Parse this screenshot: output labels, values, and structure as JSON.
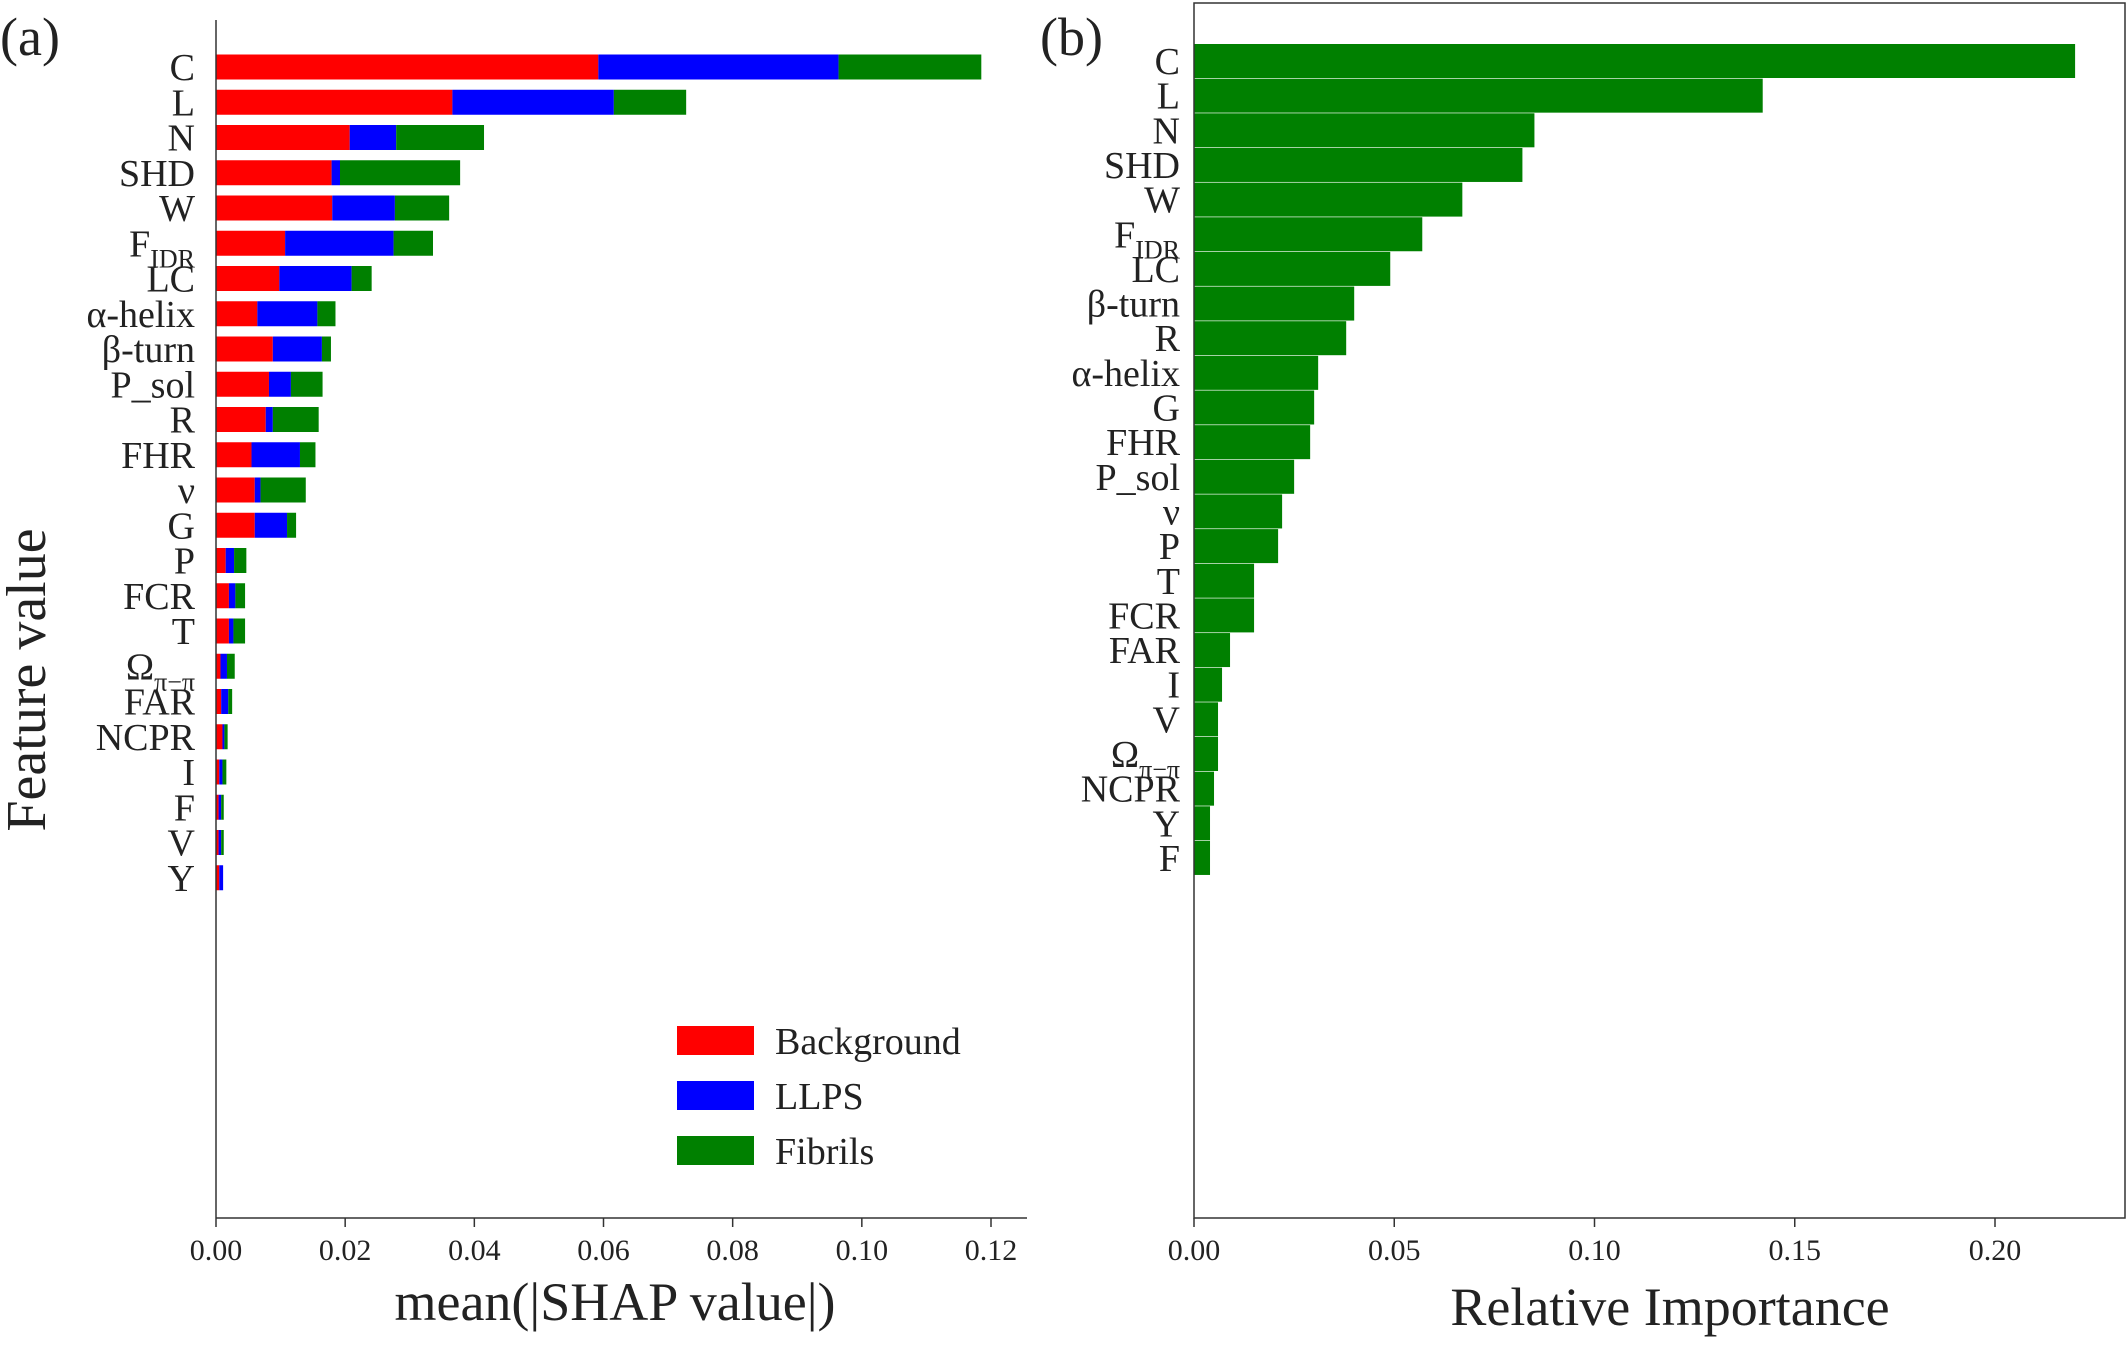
{
  "chart_data": [
    {
      "panel_label": "(a)",
      "type": "bar",
      "orientation": "horizontal",
      "stacked": true,
      "xlabel": "mean(|SHAP value|)",
      "ylabel": "Feature value",
      "xlim": [
        0.0,
        0.12
      ],
      "xticks": [
        "0.00",
        "0.02",
        "0.04",
        "0.06",
        "0.08",
        "0.10",
        "0.12"
      ],
      "grid": false,
      "legend_placement": "bottom-right",
      "categories": [
        {
          "main": "C",
          "sub": ""
        },
        {
          "main": "L",
          "sub": ""
        },
        {
          "main": "N",
          "sub": ""
        },
        {
          "main": "SHD",
          "sub": ""
        },
        {
          "main": "W",
          "sub": ""
        },
        {
          "main": "F",
          "sub": "IDR"
        },
        {
          "main": "LC",
          "sub": ""
        },
        {
          "main": "α-helix",
          "sub": ""
        },
        {
          "main": "β-turn",
          "sub": ""
        },
        {
          "main": "P_sol",
          "sub": ""
        },
        {
          "main": "R",
          "sub": ""
        },
        {
          "main": "FHR",
          "sub": ""
        },
        {
          "main": "ν",
          "sub": ""
        },
        {
          "main": "G",
          "sub": ""
        },
        {
          "main": "P",
          "sub": ""
        },
        {
          "main": "FCR",
          "sub": ""
        },
        {
          "main": "T",
          "sub": ""
        },
        {
          "main": "Ω",
          "sub": "π−π"
        },
        {
          "main": "FAR",
          "sub": ""
        },
        {
          "main": "NCPR",
          "sub": ""
        },
        {
          "main": "I",
          "sub": ""
        },
        {
          "main": "F",
          "sub": ""
        },
        {
          "main": "V",
          "sub": ""
        },
        {
          "main": "Y",
          "sub": ""
        }
      ],
      "series": [
        {
          "name": "Background",
          "color": "#ff0000",
          "values": [
            0.0592,
            0.0366,
            0.0207,
            0.0179,
            0.018,
            0.0107,
            0.0098,
            0.0064,
            0.0088,
            0.0082,
            0.0077,
            0.0055,
            0.006,
            0.006,
            0.0015,
            0.002,
            0.002,
            0.0007,
            0.0008,
            0.001,
            0.0005,
            0.0004,
            0.0004,
            0.0005
          ]
        },
        {
          "name": "LLPS",
          "color": "#0000ff",
          "values": [
            0.0372,
            0.025,
            0.0072,
            0.0013,
            0.0097,
            0.0168,
            0.0112,
            0.0093,
            0.0076,
            0.0034,
            0.0011,
            0.0075,
            0.0009,
            0.005,
            0.0013,
            0.001,
            0.0007,
            0.001,
            0.0011,
            0.0003,
            0.0005,
            0.0004,
            0.0004,
            0.0006
          ]
        },
        {
          "name": "Fibrils",
          "color": "#008000",
          "values": [
            0.0221,
            0.0112,
            0.0136,
            0.0186,
            0.0084,
            0.0061,
            0.0031,
            0.0028,
            0.0014,
            0.0049,
            0.0071,
            0.0024,
            0.007,
            0.0014,
            0.0019,
            0.0015,
            0.0018,
            0.0012,
            0.0006,
            0.0005,
            0.0006,
            0.0004,
            0.0004,
            0.0
          ]
        }
      ]
    },
    {
      "panel_label": "(b)",
      "type": "bar",
      "orientation": "horizontal",
      "xlabel": "Relative Importance",
      "xlim": [
        0.0,
        0.225
      ],
      "xticks": [
        "0.00",
        "0.05",
        "0.10",
        "0.15",
        "0.20"
      ],
      "grid": false,
      "color": "#008000",
      "categories": [
        {
          "main": "C",
          "sub": ""
        },
        {
          "main": "L",
          "sub": ""
        },
        {
          "main": "N",
          "sub": ""
        },
        {
          "main": "SHD",
          "sub": ""
        },
        {
          "main": "W",
          "sub": ""
        },
        {
          "main": "F",
          "sub": "IDR"
        },
        {
          "main": "LC",
          "sub": ""
        },
        {
          "main": "β-turn",
          "sub": ""
        },
        {
          "main": "R",
          "sub": ""
        },
        {
          "main": "α-helix",
          "sub": ""
        },
        {
          "main": "G",
          "sub": ""
        },
        {
          "main": "FHR",
          "sub": ""
        },
        {
          "main": "P_sol",
          "sub": ""
        },
        {
          "main": "ν",
          "sub": ""
        },
        {
          "main": "P",
          "sub": ""
        },
        {
          "main": "T",
          "sub": ""
        },
        {
          "main": "FCR",
          "sub": ""
        },
        {
          "main": "FAR",
          "sub": ""
        },
        {
          "main": "I",
          "sub": ""
        },
        {
          "main": "V",
          "sub": ""
        },
        {
          "main": "Ω",
          "sub": "π−π"
        },
        {
          "main": "NCPR",
          "sub": ""
        },
        {
          "main": "Y",
          "sub": ""
        },
        {
          "main": "F",
          "sub": ""
        }
      ],
      "values": [
        0.22,
        0.142,
        0.085,
        0.082,
        0.067,
        0.057,
        0.049,
        0.04,
        0.038,
        0.031,
        0.03,
        0.029,
        0.025,
        0.022,
        0.021,
        0.015,
        0.015,
        0.009,
        0.007,
        0.006,
        0.006,
        0.005,
        0.004,
        0.004
      ]
    }
  ]
}
